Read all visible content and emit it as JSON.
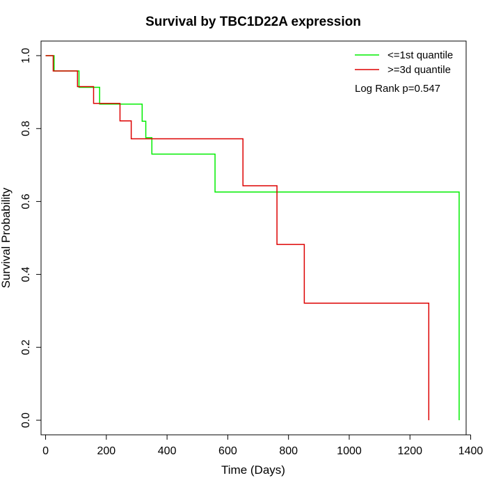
{
  "chart_data": {
    "type": "line",
    "title": "Survival by TBC1D22A expression",
    "xlabel": "Time (Days)",
    "ylabel": "Survival Probability",
    "xlim": [
      -15,
      1385
    ],
    "ylim": [
      -0.04,
      1.04
    ],
    "xticks": [
      0,
      200,
      400,
      600,
      800,
      1000,
      1200,
      1400
    ],
    "yticks": [
      0.0,
      0.2,
      0.4,
      0.6,
      0.8,
      1.0
    ],
    "xtick_labels": [
      "0",
      "200",
      "400",
      "600",
      "800",
      "1000",
      "1200",
      "1400"
    ],
    "ytick_labels": [
      "0.0",
      "0.2",
      "0.4",
      "0.6",
      "0.8",
      "1.0"
    ],
    "grid": false,
    "legend_position": "top-right",
    "annotation": "Log Rank p=0.547",
    "series": [
      {
        "name": "<=1st quantile",
        "color": "#00ee00",
        "step": true,
        "x": [
          0,
          28,
          110,
          178,
          318,
          330,
          350,
          558,
          1362,
          1362
        ],
        "y": [
          1.0,
          0.958,
          0.913,
          0.867,
          0.82,
          0.775,
          0.73,
          0.626,
          0.626,
          0.0
        ]
      },
      {
        "name": ">=3d quantile",
        "color": "#dd0000",
        "step": true,
        "x": [
          0,
          25,
          105,
          158,
          245,
          282,
          650,
          762,
          852,
          1262,
          1262
        ],
        "y": [
          1.0,
          0.958,
          0.915,
          0.869,
          0.821,
          0.772,
          0.643,
          0.482,
          0.321,
          0.321,
          0.0
        ]
      }
    ]
  }
}
